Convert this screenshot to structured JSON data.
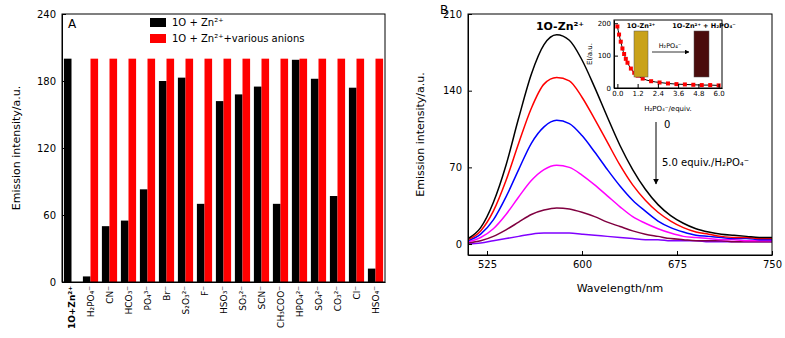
{
  "chart_data": [
    {
      "type": "bar",
      "title": "A",
      "ylabel": "Emission intensity/a.u.",
      "categories": [
        "1O+Zn²⁺",
        "H₂PO₄⁻",
        "CN⁻",
        "HCO₃⁻",
        "PO₄³⁻",
        "Br⁻",
        "S₂O₃²⁻",
        "F⁻",
        "HSO₃⁻",
        "SO₃²⁻",
        "SCN⁻",
        "CH₃COO⁻",
        "HPO₄²⁻",
        "SO₄²⁻",
        "CO₃²⁻",
        "Cl⁻",
        "HSO₄⁻"
      ],
      "series": [
        {
          "name": "1O + Zn²⁺",
          "color": "#000000",
          "values": [
            200,
            5,
            50,
            55,
            83,
            180,
            183,
            70,
            162,
            168,
            175,
            70,
            199,
            182,
            77,
            174,
            12
          ]
        },
        {
          "name": "1O + Zn²⁺+various anions",
          "color": "#ff0000",
          "values": [
            null,
            200,
            200,
            200,
            200,
            200,
            200,
            200,
            200,
            200,
            200,
            200,
            200,
            200,
            200,
            200,
            200
          ]
        }
      ],
      "ylim": [
        0,
        240
      ],
      "yticks": [
        0,
        60,
        120,
        180,
        240
      ],
      "legend": "top"
    },
    {
      "type": "line",
      "title": "B",
      "xlabel": "Wavelength/nm",
      "ylabel": "Emission intensity/a.u.",
      "x": [
        510,
        520,
        530,
        540,
        550,
        560,
        570,
        580,
        590,
        600,
        610,
        620,
        630,
        640,
        650,
        660,
        670,
        680,
        690,
        700,
        710,
        720,
        730,
        740,
        750
      ],
      "series": [
        {
          "color": "#000000",
          "values": [
            5,
            15,
            38,
            72,
            115,
            155,
            182,
            191,
            186,
            168,
            143,
            116,
            90,
            68,
            50,
            36,
            26,
            19,
            14,
            11,
            9,
            8,
            7,
            6,
            6
          ]
        },
        {
          "color": "#ff0000",
          "values": [
            4,
            12,
            30,
            58,
            92,
            124,
            146,
            152,
            149,
            134,
            114,
            93,
            72,
            54,
            40,
            29,
            21,
            15,
            11,
            9,
            7,
            6,
            6,
            5,
            5
          ]
        },
        {
          "color": "#0000ff",
          "values": [
            3,
            9,
            22,
            43,
            68,
            92,
            107,
            113,
            110,
            99,
            84,
            68,
            53,
            40,
            30,
            21,
            15,
            11,
            8,
            7,
            6,
            5,
            5,
            4,
            4
          ]
        },
        {
          "color": "#ff00ff",
          "values": [
            2,
            6,
            14,
            27,
            43,
            58,
            68,
            72,
            70,
            63,
            54,
            44,
            34,
            25,
            19,
            14,
            10,
            7,
            6,
            5,
            4,
            4,
            3,
            3,
            3
          ]
        },
        {
          "color": "#800040",
          "values": [
            1,
            3,
            7,
            13,
            20,
            27,
            31,
            33,
            32,
            29,
            25,
            20,
            16,
            12,
            9,
            7,
            5,
            4,
            3,
            3,
            3,
            2,
            2,
            2,
            2
          ]
        },
        {
          "color": "#8000ff",
          "values": [
            0,
            1,
            3,
            5,
            7,
            9,
            10,
            10,
            10,
            9,
            8,
            7,
            6,
            5,
            4,
            4,
            3,
            3,
            3,
            2,
            2,
            2,
            2,
            2,
            2
          ]
        }
      ],
      "xlim": [
        510,
        750
      ],
      "xticks": [
        525,
        600,
        675,
        750
      ],
      "ylim": [
        -10,
        210
      ],
      "yticks": [
        0,
        70,
        140,
        210
      ],
      "annotations": [
        "1O-Zn²⁺",
        "0",
        "5.0 equiv./H₂PO₄⁻"
      ]
    },
    {
      "type": "line",
      "xlabel": "H₂PO₄⁻/equiv.",
      "ylabel": "EI/a.u.",
      "x": [
        0,
        0.1,
        0.2,
        0.3,
        0.4,
        0.5,
        0.6,
        0.8,
        1.0,
        1.2,
        1.5,
        2.0,
        2.5,
        3.0,
        3.5,
        4.0,
        4.5,
        5.0,
        5.5,
        6.0
      ],
      "series": [
        {
          "type": "scatter",
          "color": "#ff0000",
          "marker": "square",
          "values": [
            190,
            165,
            143,
            122,
            105,
            90,
            78,
            60,
            47,
            38,
            29,
            21,
            17,
            14,
            12,
            11,
            10,
            9,
            9,
            8
          ]
        },
        {
          "type": "line",
          "color": "#000000",
          "values": [
            190,
            165,
            143,
            122,
            105,
            90,
            78,
            60,
            47,
            38,
            29,
            21,
            17,
            14,
            12,
            11,
            10,
            9,
            9,
            8
          ]
        }
      ],
      "xlim": [
        -0.2,
        6.2
      ],
      "xticks": [
        {
          "value": 0,
          "label": "0.0"
        },
        1.2,
        2.4,
        3.6,
        4.8,
        {
          "value": 6,
          "label": "6.0"
        }
      ],
      "ylim": [
        0,
        210
      ],
      "yticks": [
        0,
        100,
        200
      ],
      "annotations": [
        "1O-Zn²⁺",
        "H₂PO₄⁻",
        "1O-Zn²⁺ + H₂PO₄⁻"
      ]
    }
  ]
}
